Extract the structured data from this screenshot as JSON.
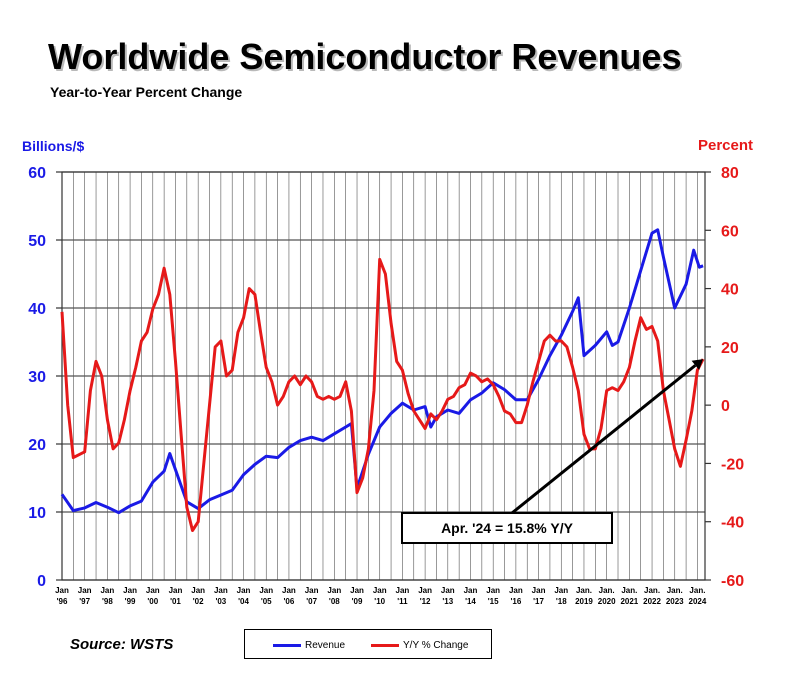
{
  "header": {
    "title": "Worldwide Semiconductor Revenues",
    "subtitle": "Year-to-Year Percent Change"
  },
  "axes": {
    "left_unit": "Billions/$",
    "right_unit": "Percent"
  },
  "footer": {
    "source": "Source: WSTS"
  },
  "legend": {
    "revenue_label": "Revenue",
    "yoy_label": "Y/Y % Change"
  },
  "annotation": {
    "text": "Apr. '24 = 15.8% Y/Y"
  },
  "colors": {
    "revenue": "#1a1ae6",
    "yoy": "#e61919",
    "grid": "#555555"
  },
  "chart_data": {
    "type": "line",
    "x_ticks": [
      {
        "top": "Jan",
        "bottom": "'96"
      },
      {
        "top": "Jan",
        "bottom": "'97"
      },
      {
        "top": "Jan",
        "bottom": "'98"
      },
      {
        "top": "Jan",
        "bottom": "'99"
      },
      {
        "top": "Jan",
        "bottom": "'00"
      },
      {
        "top": "Jan",
        "bottom": "'01"
      },
      {
        "top": "Jan",
        "bottom": "'02"
      },
      {
        "top": "Jan",
        "bottom": "'03"
      },
      {
        "top": "Jan",
        "bottom": "'04"
      },
      {
        "top": "Jan",
        "bottom": "'05"
      },
      {
        "top": "Jan",
        "bottom": "'06"
      },
      {
        "top": "Jan",
        "bottom": "'07"
      },
      {
        "top": "Jan",
        "bottom": "'08"
      },
      {
        "top": "Jan",
        "bottom": "'09"
      },
      {
        "top": "Jan",
        "bottom": "'10"
      },
      {
        "top": "Jan",
        "bottom": "'11"
      },
      {
        "top": "Jan",
        "bottom": "'12"
      },
      {
        "top": "Jan",
        "bottom": "'13"
      },
      {
        "top": "Jan",
        "bottom": "'14"
      },
      {
        "top": "Jan",
        "bottom": "'15"
      },
      {
        "top": "Jan",
        "bottom": "'16"
      },
      {
        "top": "Jan",
        "bottom": "'17"
      },
      {
        "top": "Jan",
        "bottom": "'18"
      },
      {
        "top": "Jan.",
        "bottom": "2019"
      },
      {
        "top": "Jan.",
        "bottom": "2020"
      },
      {
        "top": "Jan.",
        "bottom": "2021"
      },
      {
        "top": "Jan.",
        "bottom": "2022"
      },
      {
        "top": "Jan.",
        "bottom": "2023"
      },
      {
        "top": "Jan.",
        "bottom": "2024"
      }
    ],
    "left_axis": {
      "min": 0,
      "max": 60,
      "ticks": [
        0,
        10,
        20,
        30,
        40,
        50,
        60
      ]
    },
    "right_axis": {
      "min": -60,
      "max": 80,
      "ticks": [
        -60,
        -40,
        -20,
        0,
        20,
        40,
        60,
        80
      ]
    },
    "grid": true,
    "series": [
      {
        "name": "Revenue",
        "axis": "left",
        "points": [
          [
            "1996-01",
            12.6
          ],
          [
            "1996-07",
            10.2
          ],
          [
            "1997-01",
            10.6
          ],
          [
            "1997-07",
            11.4
          ],
          [
            "1998-01",
            10.7
          ],
          [
            "1998-07",
            9.9
          ],
          [
            "1999-01",
            10.9
          ],
          [
            "1999-07",
            11.6
          ],
          [
            "2000-01",
            14.4
          ],
          [
            "2000-07",
            16.0
          ],
          [
            "2000-10",
            18.6
          ],
          [
            "2001-01",
            16.2
          ],
          [
            "2001-07",
            11.5
          ],
          [
            "2002-01",
            10.5
          ],
          [
            "2002-07",
            11.8
          ],
          [
            "2003-01",
            12.5
          ],
          [
            "2003-07",
            13.2
          ],
          [
            "2004-01",
            15.5
          ],
          [
            "2004-07",
            17.0
          ],
          [
            "2005-01",
            18.2
          ],
          [
            "2005-07",
            18.0
          ],
          [
            "2006-01",
            19.5
          ],
          [
            "2006-07",
            20.5
          ],
          [
            "2007-01",
            21.0
          ],
          [
            "2007-07",
            20.5
          ],
          [
            "2008-01",
            21.5
          ],
          [
            "2008-07",
            22.5
          ],
          [
            "2008-10",
            23.0
          ],
          [
            "2009-01",
            13.5
          ],
          [
            "2009-07",
            18.5
          ],
          [
            "2010-01",
            22.5
          ],
          [
            "2010-07",
            24.5
          ],
          [
            "2011-01",
            26.0
          ],
          [
            "2011-07",
            25.0
          ],
          [
            "2012-01",
            25.5
          ],
          [
            "2012-04",
            22.5
          ],
          [
            "2012-07",
            24.0
          ],
          [
            "2013-01",
            25.0
          ],
          [
            "2013-07",
            24.5
          ],
          [
            "2014-01",
            26.5
          ],
          [
            "2014-07",
            27.5
          ],
          [
            "2015-01",
            29.0
          ],
          [
            "2015-07",
            28.0
          ],
          [
            "2016-01",
            26.5
          ],
          [
            "2016-07",
            26.5
          ],
          [
            "2017-01",
            29.5
          ],
          [
            "2017-07",
            33.0
          ],
          [
            "2018-01",
            36.0
          ],
          [
            "2018-07",
            39.5
          ],
          [
            "2018-10",
            41.5
          ],
          [
            "2019-01",
            33.0
          ],
          [
            "2019-07",
            34.5
          ],
          [
            "2020-01",
            36.5
          ],
          [
            "2020-04",
            34.5
          ],
          [
            "2020-07",
            35.0
          ],
          [
            "2021-01",
            40.0
          ],
          [
            "2021-07",
            45.5
          ],
          [
            "2022-01",
            51.0
          ],
          [
            "2022-04",
            51.5
          ],
          [
            "2022-07",
            47.5
          ],
          [
            "2023-01",
            40.0
          ],
          [
            "2023-07",
            43.5
          ],
          [
            "2023-11",
            48.5
          ],
          [
            "2024-02",
            46.0
          ],
          [
            "2024-04",
            46.2
          ]
        ]
      },
      {
        "name": "Y/Y % Change",
        "axis": "right",
        "points": [
          [
            "1996-01",
            32
          ],
          [
            "1996-04",
            0
          ],
          [
            "1996-07",
            -18
          ],
          [
            "1996-10",
            -17
          ],
          [
            "1997-01",
            -16
          ],
          [
            "1997-04",
            5
          ],
          [
            "1997-07",
            15
          ],
          [
            "1997-10",
            10
          ],
          [
            "1998-01",
            -5
          ],
          [
            "1998-04",
            -15
          ],
          [
            "1998-07",
            -13
          ],
          [
            "1998-10",
            -5
          ],
          [
            "1999-01",
            5
          ],
          [
            "1999-04",
            13
          ],
          [
            "1999-07",
            22
          ],
          [
            "1999-10",
            25
          ],
          [
            "2000-01",
            33
          ],
          [
            "2000-04",
            38
          ],
          [
            "2000-07",
            47
          ],
          [
            "2000-10",
            38
          ],
          [
            "2001-01",
            15
          ],
          [
            "2001-04",
            -10
          ],
          [
            "2001-07",
            -35
          ],
          [
            "2001-10",
            -43
          ],
          [
            "2002-01",
            -40
          ],
          [
            "2002-04",
            -20
          ],
          [
            "2002-07",
            0
          ],
          [
            "2002-10",
            20
          ],
          [
            "2003-01",
            22
          ],
          [
            "2003-04",
            10
          ],
          [
            "2003-07",
            12
          ],
          [
            "2003-10",
            25
          ],
          [
            "2004-01",
            30
          ],
          [
            "2004-04",
            40
          ],
          [
            "2004-07",
            38
          ],
          [
            "2004-10",
            25
          ],
          [
            "2005-01",
            13
          ],
          [
            "2005-04",
            8
          ],
          [
            "2005-07",
            0
          ],
          [
            "2005-10",
            3
          ],
          [
            "2006-01",
            8
          ],
          [
            "2006-04",
            10
          ],
          [
            "2006-07",
            7
          ],
          [
            "2006-10",
            10
          ],
          [
            "2007-01",
            8
          ],
          [
            "2007-04",
            3
          ],
          [
            "2007-07",
            2
          ],
          [
            "2007-10",
            3
          ],
          [
            "2008-01",
            2
          ],
          [
            "2008-04",
            3
          ],
          [
            "2008-07",
            8
          ],
          [
            "2008-10",
            -2
          ],
          [
            "2009-01",
            -30
          ],
          [
            "2009-04",
            -25
          ],
          [
            "2009-07",
            -15
          ],
          [
            "2009-10",
            5
          ],
          [
            "2010-01",
            50
          ],
          [
            "2010-04",
            45
          ],
          [
            "2010-07",
            28
          ],
          [
            "2010-10",
            15
          ],
          [
            "2011-01",
            12
          ],
          [
            "2011-04",
            4
          ],
          [
            "2011-07",
            -2
          ],
          [
            "2011-10",
            -5
          ],
          [
            "2012-01",
            -8
          ],
          [
            "2012-04",
            -3
          ],
          [
            "2012-07",
            -5
          ],
          [
            "2012-10",
            -2
          ],
          [
            "2013-01",
            2
          ],
          [
            "2013-04",
            3
          ],
          [
            "2013-07",
            6
          ],
          [
            "2013-10",
            7
          ],
          [
            "2014-01",
            11
          ],
          [
            "2014-04",
            10
          ],
          [
            "2014-07",
            8
          ],
          [
            "2014-10",
            9
          ],
          [
            "2015-01",
            7
          ],
          [
            "2015-04",
            3
          ],
          [
            "2015-07",
            -2
          ],
          [
            "2015-10",
            -3
          ],
          [
            "2016-01",
            -6
          ],
          [
            "2016-04",
            -6
          ],
          [
            "2016-07",
            0
          ],
          [
            "2016-10",
            8
          ],
          [
            "2017-01",
            15
          ],
          [
            "2017-04",
            22
          ],
          [
            "2017-07",
            24
          ],
          [
            "2017-10",
            22
          ],
          [
            "2018-01",
            22
          ],
          [
            "2018-04",
            20
          ],
          [
            "2018-07",
            13
          ],
          [
            "2018-10",
            5
          ],
          [
            "2019-01",
            -10
          ],
          [
            "2019-04",
            -15
          ],
          [
            "2019-07",
            -15
          ],
          [
            "2019-10",
            -8
          ],
          [
            "2020-01",
            5
          ],
          [
            "2020-04",
            6
          ],
          [
            "2020-07",
            5
          ],
          [
            "2020-10",
            8
          ],
          [
            "2021-01",
            13
          ],
          [
            "2021-04",
            22
          ],
          [
            "2021-07",
            30
          ],
          [
            "2021-10",
            26
          ],
          [
            "2022-01",
            27
          ],
          [
            "2022-04",
            22
          ],
          [
            "2022-07",
            5
          ],
          [
            "2022-10",
            -5
          ],
          [
            "2023-01",
            -15
          ],
          [
            "2023-04",
            -21
          ],
          [
            "2023-07",
            -12
          ],
          [
            "2023-10",
            -2
          ],
          [
            "2024-01",
            12
          ],
          [
            "2024-04",
            15.8
          ]
        ]
      }
    ]
  }
}
